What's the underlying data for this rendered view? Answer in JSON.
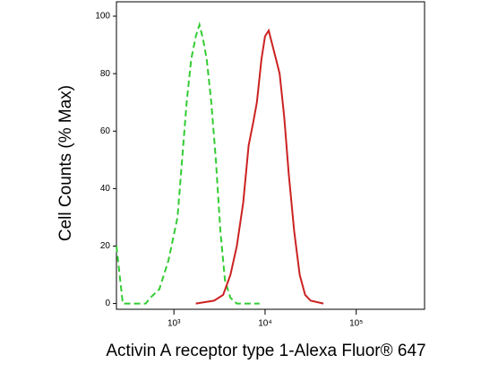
{
  "chart_data": {
    "type": "line",
    "log_x": true,
    "xlabel": "Activin A receptor type 1-Alexa Fluor® 647",
    "ylabel": "Cell Counts (% Max)",
    "xlim": [
      234,
      562000
    ],
    "ylim": [
      -2,
      105
    ],
    "xticks": [
      {
        "value": 1000,
        "label": "10³"
      },
      {
        "value": 10000,
        "label": "10⁴"
      },
      {
        "value": 100000,
        "label": "10⁵"
      }
    ],
    "yticks": [
      0,
      20,
      40,
      60,
      80,
      100
    ],
    "series": [
      {
        "color": "#33cc33",
        "dash": true,
        "x": [
          234,
          275,
          490,
          550,
          692,
          871,
          1096,
          1230,
          1380,
          1549,
          1738,
          1905,
          2089,
          2291,
          2570,
          2884,
          3236,
          3631,
          4169,
          4898,
          8710
        ],
        "values": [
          20,
          0,
          0,
          2,
          5,
          15,
          30,
          50,
          70,
          85,
          93,
          97,
          92,
          85,
          70,
          50,
          25,
          8,
          2,
          0,
          0
        ]
      },
      {
        "color": "#cc2222",
        "dash": false,
        "x": [
          1738,
          2754,
          3467,
          4169,
          4898,
          5754,
          6607,
          7413,
          8128,
          9120,
          10000,
          10965,
          12023,
          13183,
          14454,
          16218,
          18197,
          20893,
          23988,
          27542,
          31623,
          43652
        ],
        "values": [
          0,
          1,
          3,
          10,
          20,
          35,
          55,
          63,
          70,
          85,
          93,
          95,
          90,
          85,
          80,
          65,
          45,
          25,
          10,
          3,
          1,
          0
        ]
      }
    ]
  }
}
